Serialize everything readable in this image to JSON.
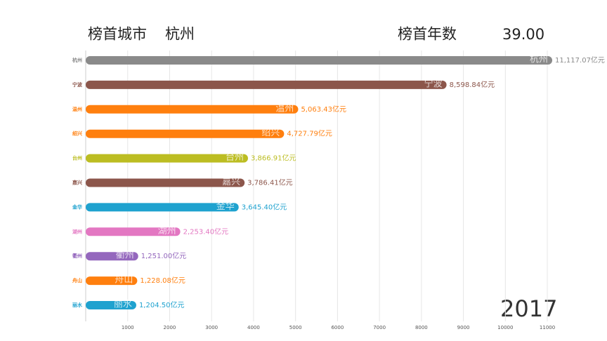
{
  "header": {
    "leader_label": "榜首城市",
    "leader_city": "杭州",
    "years_label": "榜首年数",
    "years_value": "39.00"
  },
  "chart_data": {
    "type": "bar",
    "orientation": "horizontal",
    "year": "2017",
    "categories": [
      "杭州",
      "宁波",
      "温州",
      "绍兴",
      "台州",
      "嘉兴",
      "金华",
      "湖州",
      "衢州",
      "舟山",
      "丽水"
    ],
    "values": [
      11117.07,
      8598.84,
      5063.43,
      4727.79,
      3866.91,
      3786.41,
      3645.4,
      2253.4,
      1251.0,
      1228.08,
      1204.5
    ],
    "value_labels": [
      "11,117.07亿元",
      "8,598.84亿元",
      "5,063.43亿元",
      "4,727.79亿元",
      "3,866.91亿元",
      "3,786.41亿元",
      "3,645.40亿元",
      "2,253.40亿元",
      "1,251.00亿元",
      "1,228.08亿元",
      "1,204.50亿元"
    ],
    "colors": [
      "#8a8a8a",
      "#8c564b",
      "#ff7f0e",
      "#ff7f0e",
      "#bcbd22",
      "#8c564b",
      "#1fa2cf",
      "#e377c2",
      "#9467bd",
      "#ff7f0e",
      "#1fa2cf"
    ],
    "xlim": [
      0,
      11200
    ],
    "xticks": [
      1000,
      2000,
      3000,
      4000,
      5000,
      6000,
      7000,
      8000,
      9000,
      10000,
      11000
    ],
    "grid": true
  }
}
